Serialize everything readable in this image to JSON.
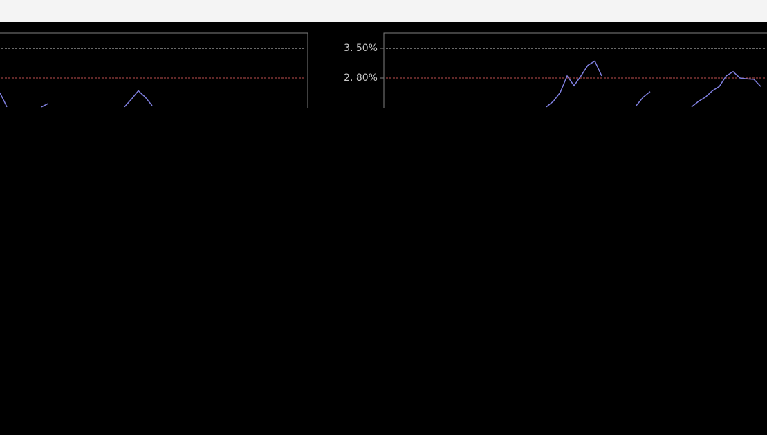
{
  "chart_data": [
    {
      "type": "line",
      "ylim": [
        2.1,
        3.5
      ],
      "reference_lines": [
        {
          "value": 3.5,
          "color": "#d0d0d0"
        },
        {
          "value": 2.8,
          "color": "#c05050"
        }
      ],
      "series": [
        {
          "color": "#8080e0",
          "values": [
            2.45,
            2.12,
            null,
            null,
            null,
            null,
            2.12,
            2.2,
            null,
            null,
            null,
            null,
            null,
            null,
            null,
            null,
            null,
            null,
            2.12,
            2.3,
            2.5,
            2.35,
            2.15
          ]
        }
      ]
    },
    {
      "type": "line",
      "ylim": [
        2.1,
        3.5
      ],
      "yticks": [
        {
          "value": 3.5,
          "label": "3. 50%"
        },
        {
          "value": 2.8,
          "label": "2. 80%"
        }
      ],
      "reference_lines": [
        {
          "value": 3.5,
          "color": "#d0d0d0"
        },
        {
          "value": 2.8,
          "color": "#c05050"
        }
      ],
      "series": [
        {
          "color": "#8080e0",
          "values": [
            null,
            null,
            null,
            null,
            null,
            null,
            null,
            null,
            null,
            null,
            null,
            null,
            null,
            null,
            null,
            null,
            null,
            null,
            null,
            null,
            null,
            null,
            null,
            2.12,
            2.25,
            2.46,
            2.85,
            2.62,
            2.85,
            3.1,
            3.2,
            2.85,
            null,
            null,
            null,
            null,
            2.15,
            2.35,
            2.48,
            null,
            null,
            null,
            null,
            null,
            2.12,
            2.25,
            2.35,
            2.5,
            2.6,
            2.85,
            2.95,
            2.8,
            2.78,
            2.77,
            2.6
          ]
        }
      ]
    }
  ]
}
